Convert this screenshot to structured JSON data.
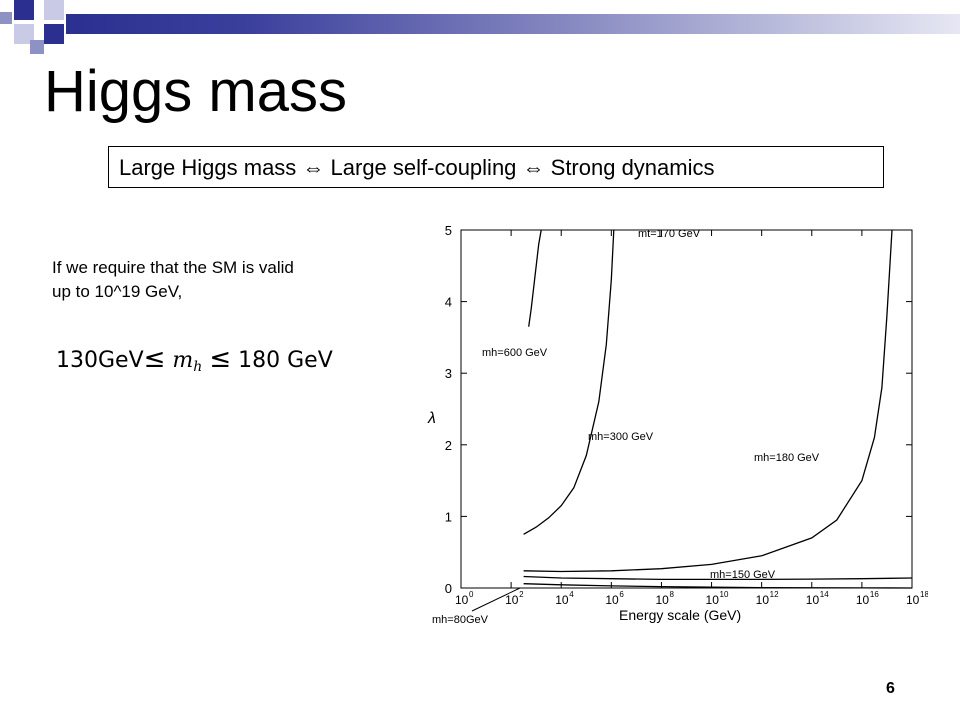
{
  "slide": {
    "title": "Higgs mass",
    "callout": "Large Higgs mass ⇔ Large self-coupling ⇔ Strong dynamics",
    "body_line1": "If we require that the SM  is valid",
    "body_line2": "up to 10^19 GeV,",
    "formula": {
      "left": "130GeV",
      "le1": "≤",
      "m": "m",
      "sub": "h",
      "le2": "≤",
      "right": "180 GeV"
    },
    "page_number": "6"
  },
  "colors": {
    "accent_dark": "#2b2f8f",
    "accent_light": "#8e91c4"
  },
  "chart_data": {
    "type": "line",
    "title": "",
    "xlabel": "Energy scale (GeV)",
    "ylabel": "λ",
    "x_scale": "log10",
    "xlim_log10": [
      0,
      18
    ],
    "ylim": [
      0,
      5
    ],
    "x_tick_base": "10",
    "x_tick_exponents": [
      "0",
      "2",
      "4",
      "6",
      "8",
      "10",
      "12",
      "14",
      "16",
      "18"
    ],
    "y_ticks": [
      "0",
      "1",
      "2",
      "3",
      "4",
      "5"
    ],
    "grid": false,
    "annotations": [
      "mt=170 GeV"
    ],
    "series": [
      {
        "name": "mh=600 GeV",
        "log10_x": [
          2.7,
          2.8,
          2.9,
          3.0,
          3.1,
          3.2
        ],
        "y": [
          3.65,
          3.9,
          4.2,
          4.5,
          4.8,
          5.0
        ]
      },
      {
        "name": "mh=300 GeV",
        "log10_x": [
          2.5,
          3.0,
          3.5,
          4.0,
          4.5,
          5.0,
          5.5,
          5.8,
          6.0,
          6.1
        ],
        "y": [
          0.75,
          0.85,
          0.98,
          1.15,
          1.4,
          1.85,
          2.6,
          3.4,
          4.3,
          5.0
        ]
      },
      {
        "name": "mh=180 GeV",
        "log10_x": [
          2.5,
          4,
          6,
          8,
          10,
          12,
          14,
          15,
          16,
          16.5,
          16.8,
          17.0,
          17.2
        ],
        "y": [
          0.24,
          0.23,
          0.24,
          0.27,
          0.33,
          0.45,
          0.7,
          0.95,
          1.5,
          2.1,
          2.8,
          3.8,
          5.0
        ]
      },
      {
        "name": "mh=150 GeV",
        "log10_x": [
          2.5,
          4,
          6,
          8,
          10,
          12,
          14,
          16,
          18
        ],
        "y": [
          0.16,
          0.14,
          0.13,
          0.12,
          0.12,
          0.12,
          0.125,
          0.13,
          0.14
        ]
      },
      {
        "name": "mh=80GeV",
        "log10_x": [
          2.5,
          4,
          6,
          8,
          10,
          12,
          14,
          16,
          18
        ],
        "y": [
          0.06,
          0.045,
          0.03,
          0.02,
          0.012,
          0.006,
          0.003,
          0.001,
          0.0
        ]
      }
    ]
  }
}
